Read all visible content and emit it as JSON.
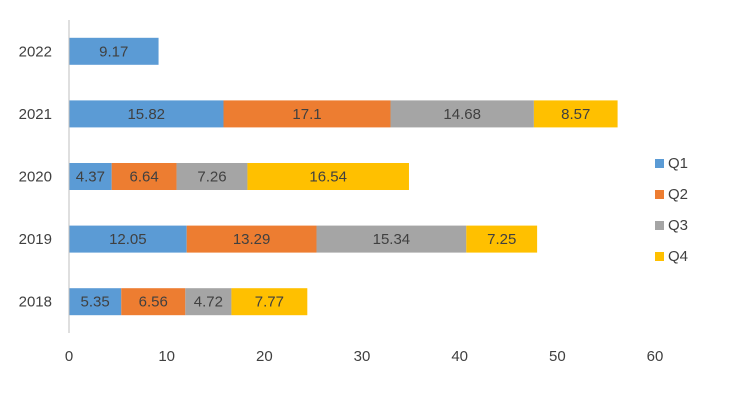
{
  "chart_data": {
    "type": "bar",
    "orientation": "horizontal",
    "stacked": true,
    "title": "",
    "xlabel": "",
    "ylabel": "",
    "categories": [
      "2018",
      "2019",
      "2020",
      "2021",
      "2022"
    ],
    "series": [
      {
        "name": "Q1",
        "color": "#5b9bd5",
        "values": [
          5.35,
          12.05,
          4.37,
          15.82,
          9.17
        ],
        "labels": [
          "5.35",
          "12.05",
          "4.37",
          "15.82",
          "9.17"
        ]
      },
      {
        "name": "Q2",
        "color": "#ed7d31",
        "values": [
          6.56,
          13.29,
          6.64,
          17.1,
          null
        ],
        "labels": [
          "6.56",
          "13.29",
          "6.64",
          "17.1",
          ""
        ]
      },
      {
        "name": "Q3",
        "color": "#a5a5a5",
        "values": [
          4.72,
          15.34,
          7.26,
          14.68,
          null
        ],
        "labels": [
          "4.72",
          "15.34",
          "7.26",
          "14.68",
          ""
        ]
      },
      {
        "name": "Q4",
        "color": "#ffc000",
        "values": [
          7.77,
          7.25,
          16.54,
          8.57,
          null
        ],
        "labels": [
          "7.77",
          "7.25",
          "16.54",
          "8.57",
          ""
        ]
      }
    ],
    "xlim": [
      0,
      60
    ],
    "x_ticks": [
      "0",
      "10",
      "20",
      "30",
      "40",
      "50",
      "60"
    ],
    "grid": false,
    "legend_position": "right",
    "data_labels": true
  }
}
